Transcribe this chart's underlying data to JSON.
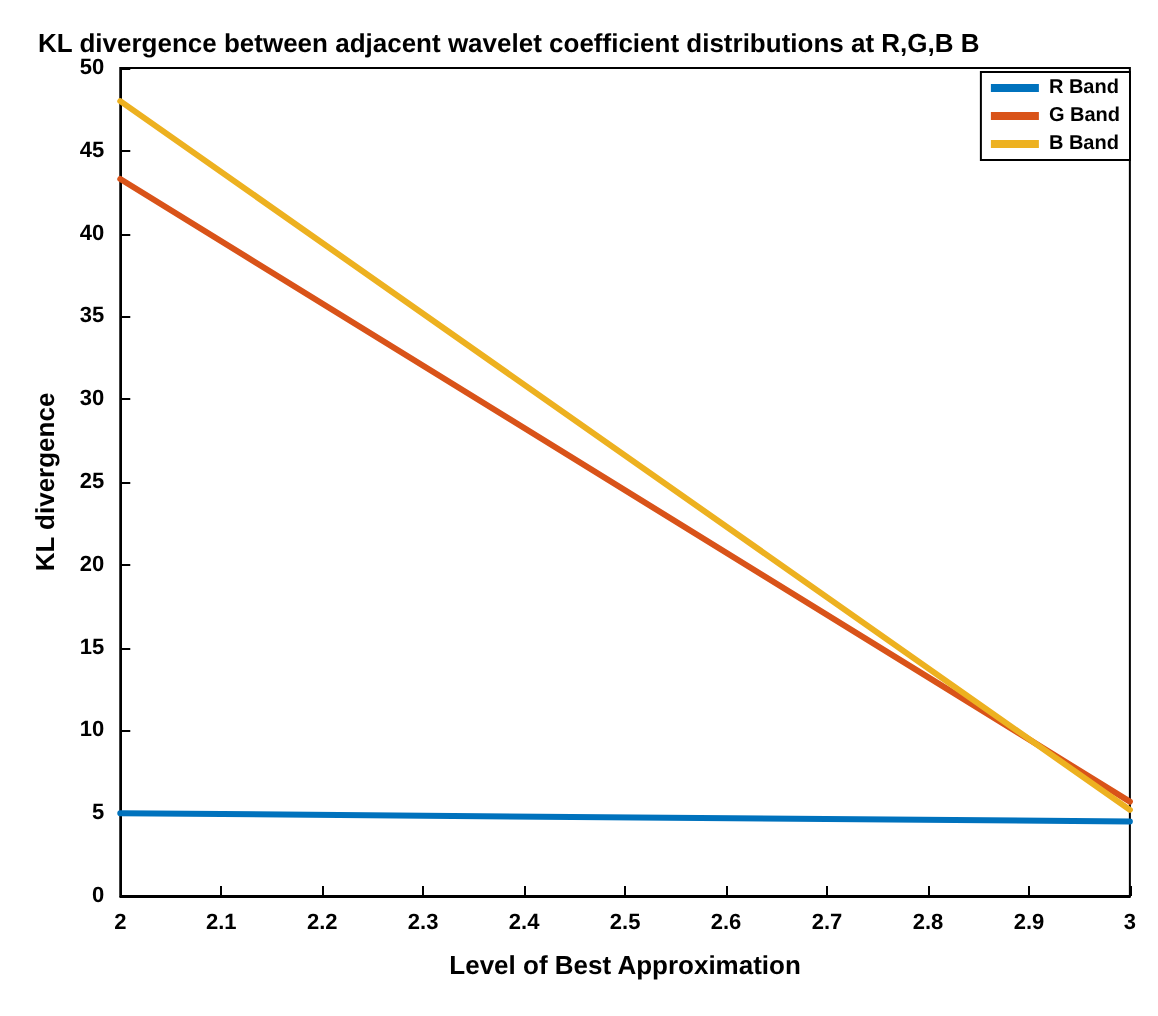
{
  "chart_data": {
    "type": "line",
    "title": "KL divergence between adjacent wavelet coefficient distributions at R,G,B B",
    "xlabel": "Level of Best Approximation",
    "ylabel": "KL divergence",
    "x": [
      2,
      3
    ],
    "series": [
      {
        "name": "R Band",
        "color": "#0072bd",
        "values": [
          5.0,
          4.5
        ]
      },
      {
        "name": "G Band",
        "color": "#d95319",
        "values": [
          43.3,
          5.7
        ]
      },
      {
        "name": "B Band",
        "color": "#edb120",
        "values": [
          48.0,
          5.2
        ]
      }
    ],
    "xlim": [
      2,
      3
    ],
    "xticks": [
      2,
      2.1,
      2.2,
      2.3,
      2.4,
      2.5,
      2.6,
      2.7,
      2.8,
      2.9,
      3
    ],
    "ylim": [
      0,
      50
    ],
    "yticks": [
      0,
      5,
      10,
      15,
      20,
      25,
      30,
      35,
      40,
      45,
      50
    ],
    "grid": false,
    "legend": "top right",
    "marker": "none",
    "line_style": "solid"
  }
}
